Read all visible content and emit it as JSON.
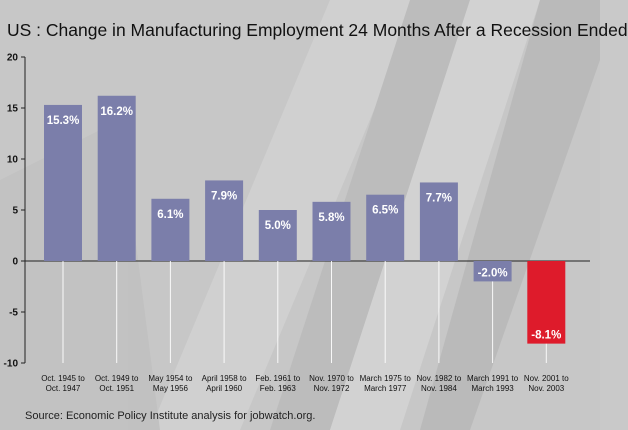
{
  "title": "US : Change in Manufacturing Employment 24 Months After a Recession Ended",
  "source": "Source: Economic Policy Institute analysis for jobwatch.org.",
  "colors": {
    "bar": "#7b7eaa",
    "highlight": "#de1b2b",
    "background": "#c9c9c9"
  },
  "chart_data": {
    "type": "bar",
    "title": "US : Change in Manufacturing Employment 24 Months After a Recession Ended",
    "xlabel": "",
    "ylabel": "",
    "ylim": [
      -10,
      20
    ],
    "yticks": [
      20,
      15,
      10,
      5,
      0,
      -5,
      -10
    ],
    "grid": false,
    "categories": [
      [
        "Oct. 1945 to",
        "Oct. 1947"
      ],
      [
        "Oct. 1949 to",
        "Oct. 1951"
      ],
      [
        "May 1954 to",
        "May 1956"
      ],
      [
        "April 1958 to",
        "April 1960"
      ],
      [
        "Feb. 1961 to",
        "Feb. 1963"
      ],
      [
        "Nov. 1970 to",
        "Nov. 1972"
      ],
      [
        "March 1975 to",
        "March 1977"
      ],
      [
        "Nov. 1982 to",
        "Nov. 1984"
      ],
      [
        "March 1991 to",
        "March 1993"
      ],
      [
        "Nov. 2001 to",
        "Nov. 2003"
      ]
    ],
    "values": [
      15.3,
      16.2,
      6.1,
      7.9,
      5.0,
      5.8,
      6.5,
      7.7,
      -2.0,
      -8.1
    ],
    "data_labels": [
      "15.3%",
      "16.2%",
      "6.1%",
      "7.9%",
      "5.0%",
      "5.8%",
      "6.5%",
      "7.7%",
      "-2.0%",
      "-8.1%"
    ],
    "highlight_index": 9
  }
}
